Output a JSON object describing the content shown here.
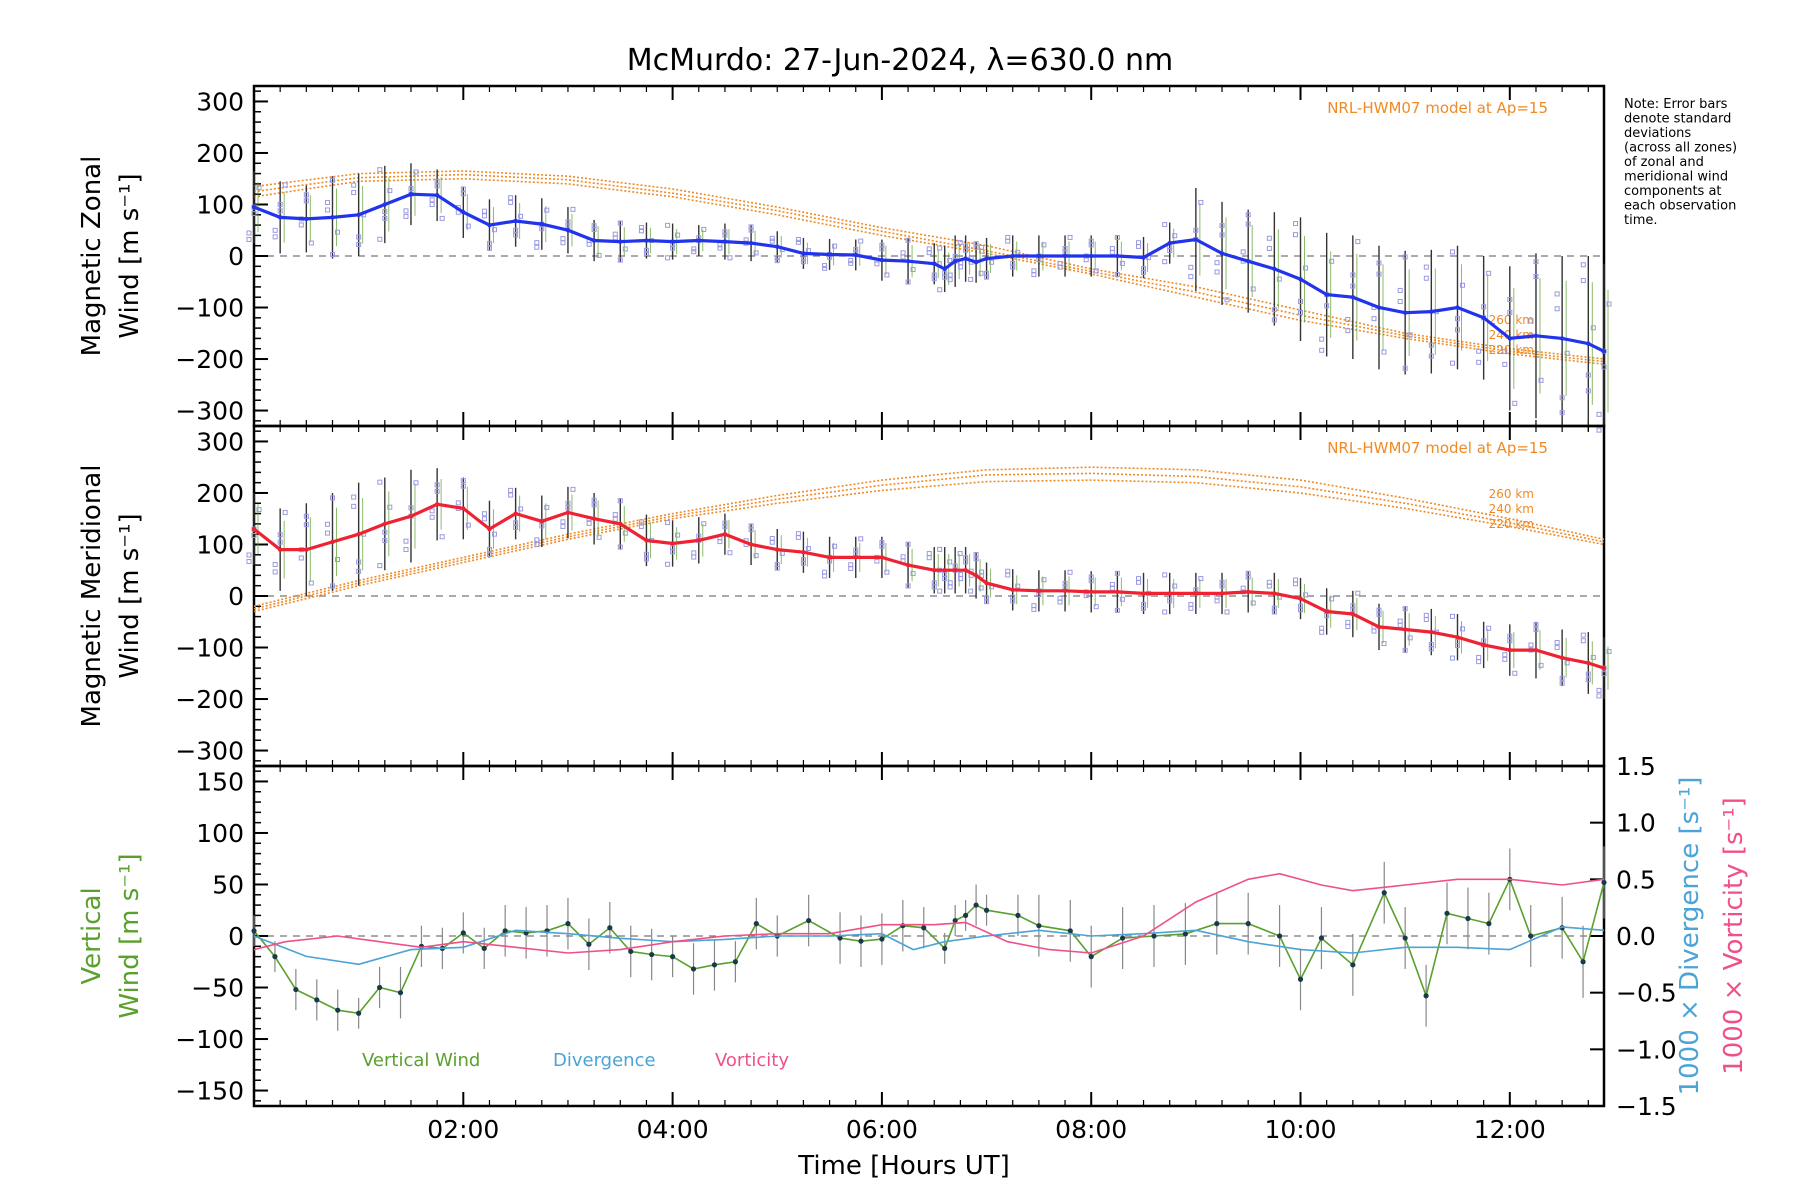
{
  "title": "McMurdo: 27-Jun-2024, λ=630.0 nm",
  "note": [
    "Note: Error bars",
    "denote standard",
    "deviations",
    "(across all zones)",
    "of zonal and",
    "meridional wind",
    "components at",
    "each observation",
    "time."
  ],
  "colors": {
    "zonal": "#2233ee",
    "meridional": "#ee2233",
    "model": "#f08a24",
    "vertical": "#5aa02c",
    "divergence": "#4ba3d6",
    "vorticity": "#f0508a",
    "scatter": "#9a9ae0",
    "errorbar": "#333333",
    "zero": "#777777"
  },
  "chart_data": [
    {
      "id": "zonal",
      "type": "line",
      "ylabel": [
        "Magnetic Zonal",
        "Wind [m s⁻¹]"
      ],
      "ylim": [
        -330,
        330
      ],
      "yticks": [
        300,
        200,
        100,
        0,
        -100,
        -200,
        -300
      ],
      "xlim": [
        0,
        12.9
      ],
      "model_label": "NRL-HWM07 model at Ap=15",
      "model_height_labels": [
        "260 km",
        "240 km",
        "220 km"
      ],
      "series": [
        {
          "name": "Magnetic Zonal Wind",
          "x": [
            0.0,
            0.25,
            0.5,
            0.75,
            1.0,
            1.25,
            1.5,
            1.75,
            2.0,
            2.25,
            2.5,
            2.75,
            3.0,
            3.25,
            3.5,
            3.75,
            4.0,
            4.25,
            4.5,
            4.75,
            5.0,
            5.25,
            5.5,
            5.75,
            6.0,
            6.25,
            6.5,
            6.6,
            6.7,
            6.8,
            6.9,
            7.0,
            7.25,
            7.5,
            7.75,
            8.0,
            8.25,
            8.5,
            8.75,
            9.0,
            9.25,
            9.5,
            9.75,
            10.0,
            10.25,
            10.5,
            10.75,
            11.0,
            11.25,
            11.5,
            11.75,
            12.0,
            12.25,
            12.5,
            12.75,
            12.9
          ],
          "values": [
            95,
            75,
            72,
            75,
            80,
            100,
            120,
            118,
            85,
            60,
            68,
            62,
            50,
            30,
            28,
            30,
            28,
            30,
            28,
            25,
            18,
            5,
            3,
            2,
            -8,
            -10,
            -15,
            -25,
            -10,
            -5,
            -12,
            -5,
            0,
            0,
            0,
            0,
            0,
            -3,
            25,
            32,
            5,
            -10,
            -25,
            -45,
            -75,
            -80,
            -100,
            -110,
            -108,
            -100,
            -120,
            -160,
            -155,
            -160,
            -170,
            -185
          ],
          "errors": [
            70,
            70,
            65,
            80,
            80,
            75,
            60,
            50,
            50,
            50,
            50,
            50,
            45,
            40,
            40,
            35,
            35,
            30,
            35,
            35,
            30,
            30,
            30,
            30,
            40,
            45,
            40,
            45,
            50,
            45,
            40,
            40,
            40,
            40,
            40,
            40,
            40,
            40,
            40,
            100,
            100,
            100,
            110,
            120,
            120,
            120,
            120,
            120,
            120,
            120,
            120,
            140,
            160,
            160,
            170,
            170
          ]
        }
      ],
      "model": [
        {
          "name": "260 km",
          "x": [
            0,
            1,
            2,
            3,
            4,
            5,
            6,
            7,
            8,
            9,
            10,
            11,
            12,
            12.9
          ],
          "values": [
            135,
            160,
            165,
            155,
            130,
            95,
            55,
            20,
            -25,
            -60,
            -105,
            -150,
            -180,
            -200
          ]
        },
        {
          "name": "240 km",
          "x": [
            0,
            1,
            2,
            3,
            4,
            5,
            6,
            7,
            8,
            9,
            10,
            11,
            12,
            12.9
          ],
          "values": [
            125,
            152,
            158,
            148,
            122,
            88,
            48,
            10,
            -30,
            -70,
            -115,
            -155,
            -185,
            -205
          ]
        },
        {
          "name": "220 km",
          "x": [
            0,
            1,
            2,
            3,
            4,
            5,
            6,
            7,
            8,
            9,
            10,
            11,
            12,
            12.9
          ],
          "values": [
            115,
            145,
            150,
            140,
            115,
            80,
            40,
            5,
            -35,
            -80,
            -125,
            -160,
            -190,
            -210
          ]
        }
      ]
    },
    {
      "id": "meridional",
      "type": "line",
      "ylabel": [
        "Magnetic Meridional",
        "Wind [m s⁻¹]"
      ],
      "ylim": [
        -330,
        330
      ],
      "yticks": [
        300,
        200,
        100,
        0,
        -100,
        -200,
        -300
      ],
      "xlim": [
        0,
        12.9
      ],
      "model_label": "NRL-HWM07 model at Ap=15",
      "model_height_labels": [
        "260 km",
        "240 km",
        "220 km"
      ],
      "series": [
        {
          "name": "Magnetic Meridional Wind",
          "x": [
            0.0,
            0.25,
            0.5,
            0.75,
            1.0,
            1.25,
            1.5,
            1.75,
            2.0,
            2.25,
            2.5,
            2.75,
            3.0,
            3.25,
            3.5,
            3.75,
            4.0,
            4.25,
            4.5,
            4.75,
            5.0,
            5.25,
            5.5,
            5.75,
            6.0,
            6.25,
            6.5,
            6.6,
            6.7,
            6.8,
            6.9,
            7.0,
            7.25,
            7.5,
            7.75,
            8.0,
            8.25,
            8.5,
            8.75,
            9.0,
            9.25,
            9.5,
            9.75,
            10.0,
            10.25,
            10.5,
            10.75,
            11.0,
            11.25,
            11.5,
            11.75,
            12.0,
            12.25,
            12.5,
            12.75,
            12.9
          ],
          "values": [
            130,
            90,
            90,
            105,
            120,
            140,
            155,
            178,
            170,
            130,
            160,
            145,
            162,
            150,
            140,
            108,
            102,
            108,
            120,
            100,
            90,
            85,
            75,
            75,
            75,
            60,
            50,
            50,
            50,
            50,
            40,
            25,
            12,
            10,
            10,
            8,
            8,
            5,
            5,
            5,
            5,
            8,
            5,
            -5,
            -30,
            -35,
            -60,
            -65,
            -70,
            -80,
            -95,
            -105,
            -105,
            -120,
            -130,
            -140
          ],
          "errors": [
            70,
            80,
            90,
            95,
            100,
            90,
            90,
            70,
            60,
            55,
            50,
            50,
            50,
            50,
            50,
            50,
            45,
            45,
            40,
            40,
            40,
            40,
            40,
            40,
            40,
            45,
            45,
            45,
            45,
            45,
            45,
            40,
            40,
            40,
            40,
            40,
            40,
            40,
            40,
            40,
            40,
            40,
            40,
            40,
            45,
            45,
            45,
            45,
            45,
            45,
            45,
            50,
            55,
            55,
            60,
            60
          ]
        }
      ],
      "model": [
        {
          "name": "260 km",
          "x": [
            0,
            1,
            2,
            3,
            4,
            5,
            6,
            7,
            8,
            9,
            10,
            11,
            12,
            12.9
          ],
          "values": [
            -20,
            30,
            75,
            120,
            160,
            195,
            225,
            245,
            250,
            245,
            225,
            190,
            150,
            110
          ]
        },
        {
          "name": "240 km",
          "x": [
            0,
            1,
            2,
            3,
            4,
            5,
            6,
            7,
            8,
            9,
            10,
            11,
            12,
            12.9
          ],
          "values": [
            -25,
            25,
            70,
            115,
            155,
            188,
            215,
            235,
            238,
            232,
            212,
            180,
            142,
            105
          ]
        },
        {
          "name": "220 km",
          "x": [
            0,
            1,
            2,
            3,
            4,
            5,
            6,
            7,
            8,
            9,
            10,
            11,
            12,
            12.9
          ],
          "values": [
            -30,
            20,
            65,
            110,
            150,
            180,
            205,
            222,
            225,
            220,
            200,
            170,
            135,
            100
          ]
        }
      ]
    },
    {
      "id": "vertical",
      "type": "line",
      "ylabel_left": [
        "Vertical",
        "Wind [m s⁻¹]"
      ],
      "ylabel_right1": "1000 × Divergence [s⁻¹]",
      "ylabel_right2": "1000 × Vorticity [s⁻¹]",
      "ylim": [
        -165,
        165
      ],
      "yticks": [
        150,
        100,
        50,
        0,
        -50,
        -100,
        -150
      ],
      "ylim_right": [
        -1.5,
        1.5
      ],
      "yticks_right": [
        "1.5",
        "1.0",
        "0.5",
        "0.0",
        "-0.5",
        "-1.0",
        "-1.5"
      ],
      "xlabel": "Time [Hours UT]",
      "xlim": [
        0,
        12.9
      ],
      "xticks": [
        {
          "x": 2,
          "label": "02:00"
        },
        {
          "x": 4,
          "label": "04:00"
        },
        {
          "x": 6,
          "label": "06:00"
        },
        {
          "x": 8,
          "label": "08:00"
        },
        {
          "x": 10,
          "label": "10:00"
        },
        {
          "x": 12,
          "label": "12:00"
        }
      ],
      "legend": [
        "Vertical Wind",
        "Divergence",
        "Vorticity"
      ],
      "series": [
        {
          "name": "Vertical Wind",
          "x": [
            0.0,
            0.2,
            0.4,
            0.6,
            0.8,
            1.0,
            1.2,
            1.4,
            1.6,
            1.8,
            2.0,
            2.2,
            2.4,
            2.6,
            2.8,
            3.0,
            3.2,
            3.4,
            3.6,
            3.8,
            4.0,
            4.2,
            4.4,
            4.6,
            4.8,
            5.0,
            5.3,
            5.6,
            5.8,
            6.0,
            6.2,
            6.4,
            6.6,
            6.7,
            6.8,
            6.9,
            7.0,
            7.3,
            7.5,
            7.8,
            8.0,
            8.3,
            8.6,
            8.9,
            9.2,
            9.5,
            9.8,
            10.0,
            10.2,
            10.5,
            10.8,
            11.0,
            11.2,
            11.4,
            11.6,
            11.8,
            12.0,
            12.2,
            12.5,
            12.7,
            12.9
          ],
          "values": [
            5,
            -20,
            -52,
            -62,
            -72,
            -75,
            -50,
            -55,
            -10,
            -12,
            3,
            -12,
            5,
            3,
            5,
            12,
            -8,
            8,
            -15,
            -18,
            -20,
            -32,
            -28,
            -25,
            12,
            0,
            15,
            -2,
            -5,
            -3,
            10,
            8,
            -12,
            15,
            20,
            30,
            25,
            20,
            10,
            5,
            -20,
            -2,
            0,
            2,
            12,
            12,
            0,
            -42,
            -2,
            -28,
            42,
            -2,
            -58,
            22,
            17,
            12,
            55,
            0,
            8,
            -25,
            52
          ],
          "errors": [
            15,
            15,
            20,
            20,
            20,
            15,
            20,
            25,
            20,
            20,
            20,
            20,
            25,
            25,
            25,
            25,
            25,
            25,
            25,
            25,
            20,
            25,
            25,
            20,
            25,
            20,
            25,
            25,
            25,
            25,
            25,
            20,
            15,
            15,
            15,
            20,
            15,
            20,
            30,
            30,
            30,
            30,
            30,
            30,
            30,
            30,
            30,
            30,
            30,
            30,
            30,
            30,
            30,
            30,
            30,
            30,
            30,
            30,
            30,
            35,
            35
          ]
        },
        {
          "name": "Divergence",
          "axis": "right",
          "x": [
            0.0,
            0.5,
            1.0,
            1.5,
            2.0,
            2.5,
            3.0,
            3.5,
            4.0,
            4.5,
            5.0,
            5.5,
            6.0,
            6.3,
            6.6,
            7.0,
            7.5,
            8.0,
            8.5,
            9.0,
            9.5,
            10.0,
            10.5,
            11.0,
            11.5,
            12.0,
            12.5,
            12.9
          ],
          "values": [
            0.0,
            -0.18,
            -0.25,
            -0.12,
            -0.1,
            0.05,
            0.02,
            -0.02,
            -0.05,
            -0.03,
            0.0,
            0.0,
            0.02,
            -0.12,
            -0.05,
            0.0,
            0.05,
            0.0,
            0.02,
            0.05,
            -0.05,
            -0.12,
            -0.15,
            -0.1,
            -0.1,
            -0.12,
            0.08,
            0.05
          ]
        },
        {
          "name": "Vorticity",
          "axis": "right",
          "x": [
            0.0,
            0.3,
            0.8,
            1.2,
            1.6,
            2.0,
            2.5,
            3.0,
            3.5,
            4.0,
            4.5,
            5.0,
            5.5,
            6.0,
            6.5,
            6.8,
            7.2,
            7.6,
            8.0,
            8.5,
            9.0,
            9.5,
            9.8,
            10.2,
            10.5,
            11.0,
            11.5,
            12.0,
            12.5,
            12.9
          ],
          "values": [
            -0.12,
            -0.05,
            0.0,
            -0.05,
            -0.1,
            -0.05,
            -0.1,
            -0.15,
            -0.12,
            -0.05,
            0.0,
            0.02,
            0.02,
            0.1,
            0.1,
            0.12,
            -0.05,
            -0.12,
            -0.15,
            0.0,
            0.3,
            0.5,
            0.55,
            0.45,
            0.4,
            0.45,
            0.5,
            0.5,
            0.45,
            0.5
          ]
        }
      ]
    }
  ]
}
